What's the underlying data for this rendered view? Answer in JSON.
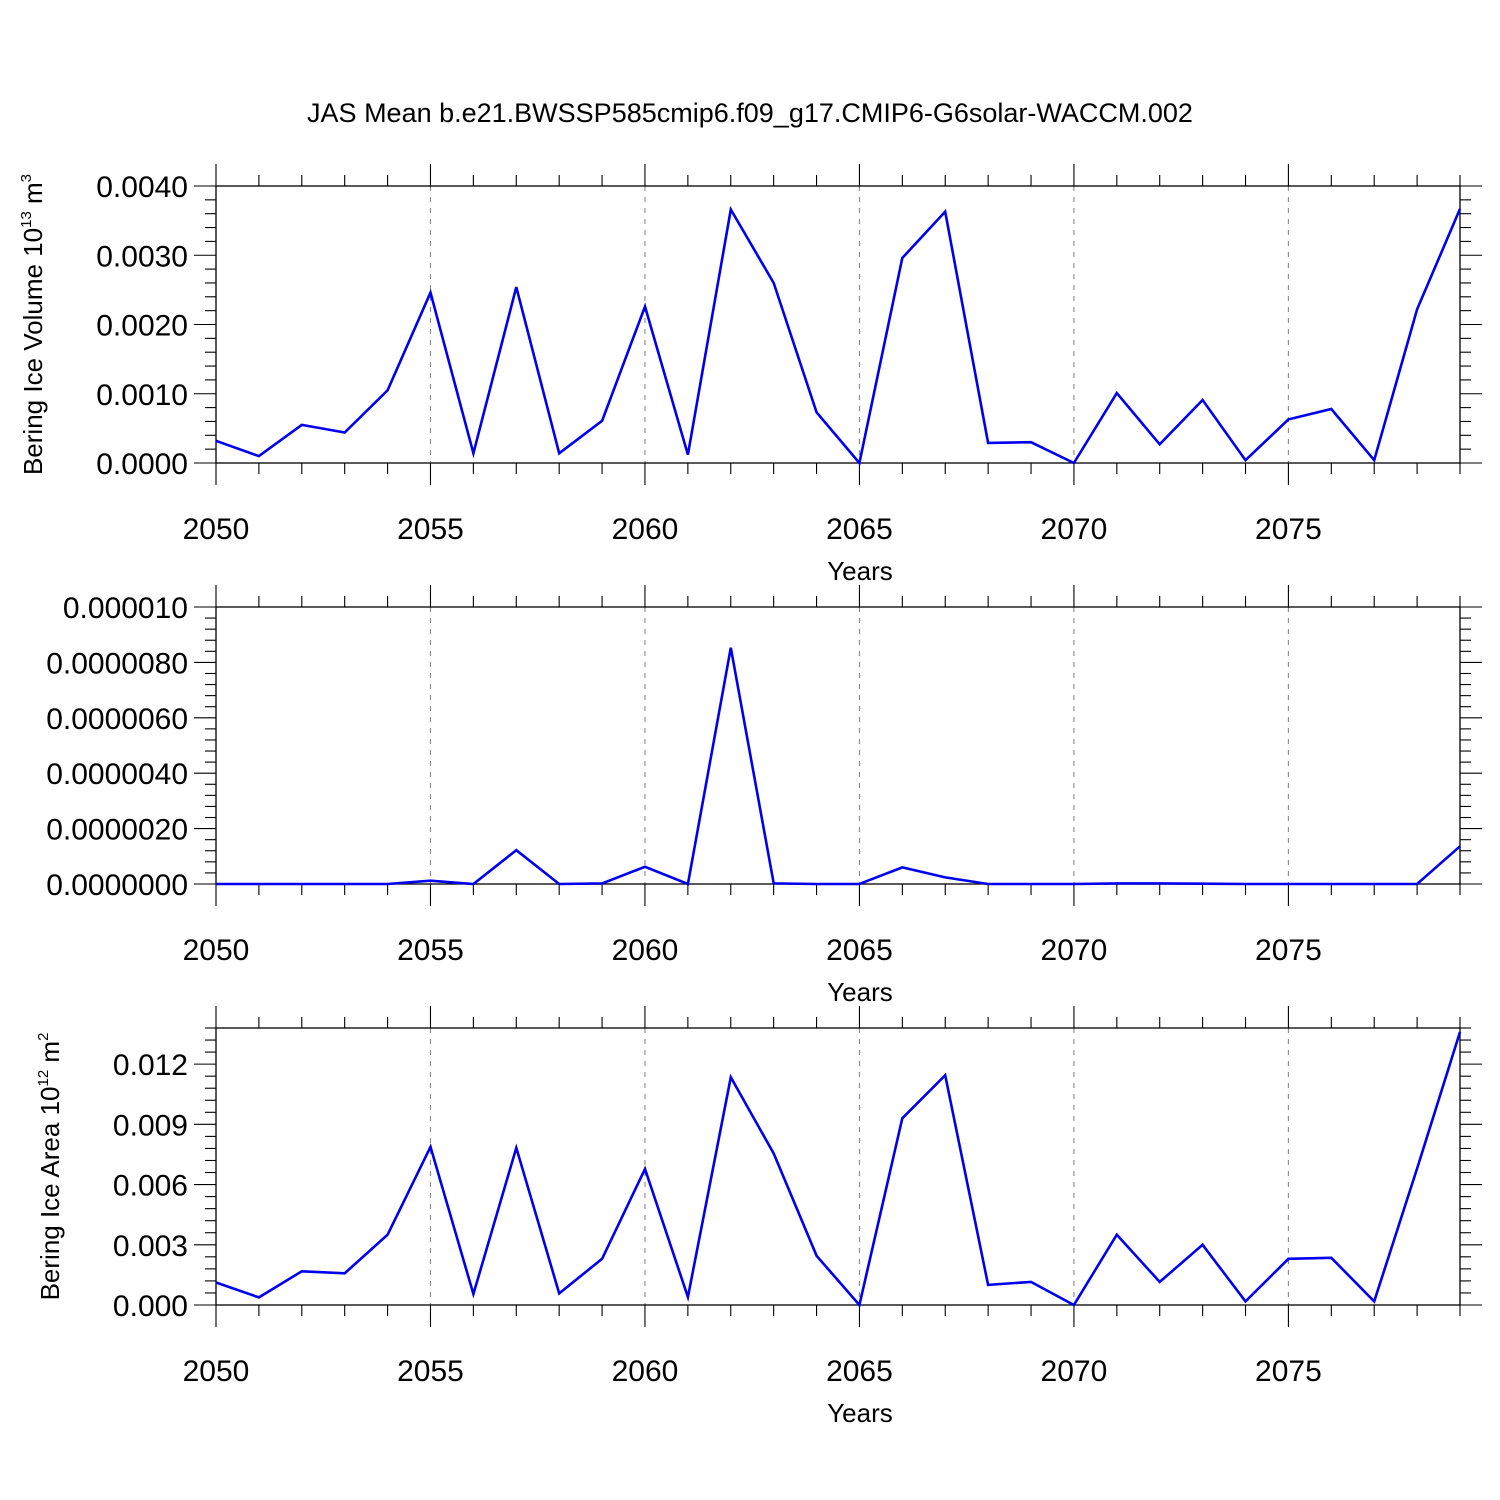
{
  "figure": {
    "title": "JAS Mean b.e21.BWSSP585cmip6.f09_g17.CMIP6-G6solar-WACCM.002",
    "line_color": "#0000ee",
    "grid_color": "#888888"
  },
  "chart_data": [
    {
      "type": "line",
      "name": "panel-1",
      "ylabel_main": "Bering Ice Volume 10",
      "ylabel_sup": "13",
      "ylabel_unit": " m",
      "ylabel_unit_sup": "3",
      "xlabel": "Years",
      "xlim": [
        2050,
        2079
      ],
      "ylim": [
        0,
        0.004
      ],
      "x_ticks": [
        2050,
        2055,
        2060,
        2065,
        2070,
        2075
      ],
      "x_tick_labels": [
        "2050",
        "2055",
        "2060",
        "2065",
        "2070",
        "2075"
      ],
      "y_ticks": [
        0,
        0.001,
        0.002,
        0.003,
        0.004
      ],
      "y_tick_labels": [
        "0.0000",
        "0.0010",
        "0.0020",
        "0.0030",
        "0.0040"
      ],
      "x": [
        2050,
        2051,
        2052,
        2053,
        2054,
        2055,
        2056,
        2057,
        2058,
        2059,
        2060,
        2061,
        2062,
        2063,
        2064,
        2065,
        2066,
        2067,
        2068,
        2069,
        2070,
        2071,
        2072,
        2073,
        2074,
        2075,
        2076,
        2077,
        2078,
        2079
      ],
      "y": [
        0.00032,
        0.0001,
        0.00055,
        0.00044,
        0.00105,
        0.00246,
        0.00014,
        0.00254,
        0.00014,
        0.00061,
        0.00226,
        0.00012,
        0.00366,
        0.0026,
        0.00073,
        0.0,
        0.00296,
        0.00363,
        0.00029,
        0.0003,
        0.0,
        0.00101,
        0.00027,
        0.00091,
        4e-05,
        0.00063,
        0.00078,
        4e-05,
        0.00222,
        0.00367
      ]
    },
    {
      "type": "line",
      "name": "panel-2",
      "ylabel_main": "",
      "ylabel_sup": "",
      "ylabel_unit": "",
      "ylabel_unit_sup": "",
      "xlabel": "Years",
      "xlim": [
        2050,
        2079
      ],
      "ylim": [
        0,
        1e-05
      ],
      "x_ticks": [
        2050,
        2055,
        2060,
        2065,
        2070,
        2075
      ],
      "x_tick_labels": [
        "2050",
        "2055",
        "2060",
        "2065",
        "2070",
        "2075"
      ],
      "y_ticks": [
        0,
        2e-06,
        4e-06,
        6e-06,
        8e-06,
        1e-05
      ],
      "y_tick_labels": [
        "0.0000000",
        "0.0000020",
        "0.0000040",
        "0.0000060",
        "0.0000080",
        "0.000010"
      ],
      "x": [
        2050,
        2051,
        2052,
        2053,
        2054,
        2055,
        2056,
        2057,
        2058,
        2059,
        2060,
        2061,
        2062,
        2063,
        2064,
        2065,
        2066,
        2067,
        2068,
        2069,
        2070,
        2071,
        2072,
        2073,
        2074,
        2075,
        2076,
        2077,
        2078,
        2079
      ],
      "y": [
        0.0,
        0.0,
        0.0,
        0.0,
        0.0,
        1.2e-07,
        0.0,
        1.22e-06,
        0.0,
        2e-08,
        6.2e-07,
        0.0,
        8.53e-06,
        2e-08,
        0.0,
        0.0,
        6e-07,
        2.4e-07,
        0.0,
        0.0,
        0.0,
        2e-08,
        2e-08,
        1e-08,
        0.0,
        0.0,
        0.0,
        0.0,
        0.0,
        1.36e-06
      ]
    },
    {
      "type": "line",
      "name": "panel-3",
      "ylabel_main": "Bering Ice Area 10",
      "ylabel_sup": "12",
      "ylabel_unit": " m",
      "ylabel_unit_sup": "2",
      "xlabel": "Years",
      "xlim": [
        2050,
        2079
      ],
      "ylim": [
        0,
        0.0138
      ],
      "x_ticks": [
        2050,
        2055,
        2060,
        2065,
        2070,
        2075
      ],
      "x_tick_labels": [
        "2050",
        "2055",
        "2060",
        "2065",
        "2070",
        "2075"
      ],
      "y_ticks": [
        0,
        0.003,
        0.006,
        0.009,
        0.012
      ],
      "y_tick_labels": [
        "0.000",
        "0.003",
        "0.006",
        "0.009",
        "0.012"
      ],
      "x": [
        2050,
        2051,
        2052,
        2053,
        2054,
        2055,
        2056,
        2057,
        2058,
        2059,
        2060,
        2061,
        2062,
        2063,
        2064,
        2065,
        2066,
        2067,
        2068,
        2069,
        2070,
        2071,
        2072,
        2073,
        2074,
        2075,
        2076,
        2077,
        2078,
        2079
      ],
      "y": [
        0.00112,
        0.00038,
        0.00168,
        0.00158,
        0.0035,
        0.00788,
        0.00055,
        0.00783,
        0.00058,
        0.0023,
        0.00678,
        0.0004,
        0.01135,
        0.00755,
        0.00245,
        0.0,
        0.0093,
        0.01145,
        0.001,
        0.00115,
        0.0,
        0.0035,
        0.00115,
        0.003,
        0.00018,
        0.0023,
        0.00235,
        0.00018,
        0.0068,
        0.0136
      ]
    }
  ]
}
